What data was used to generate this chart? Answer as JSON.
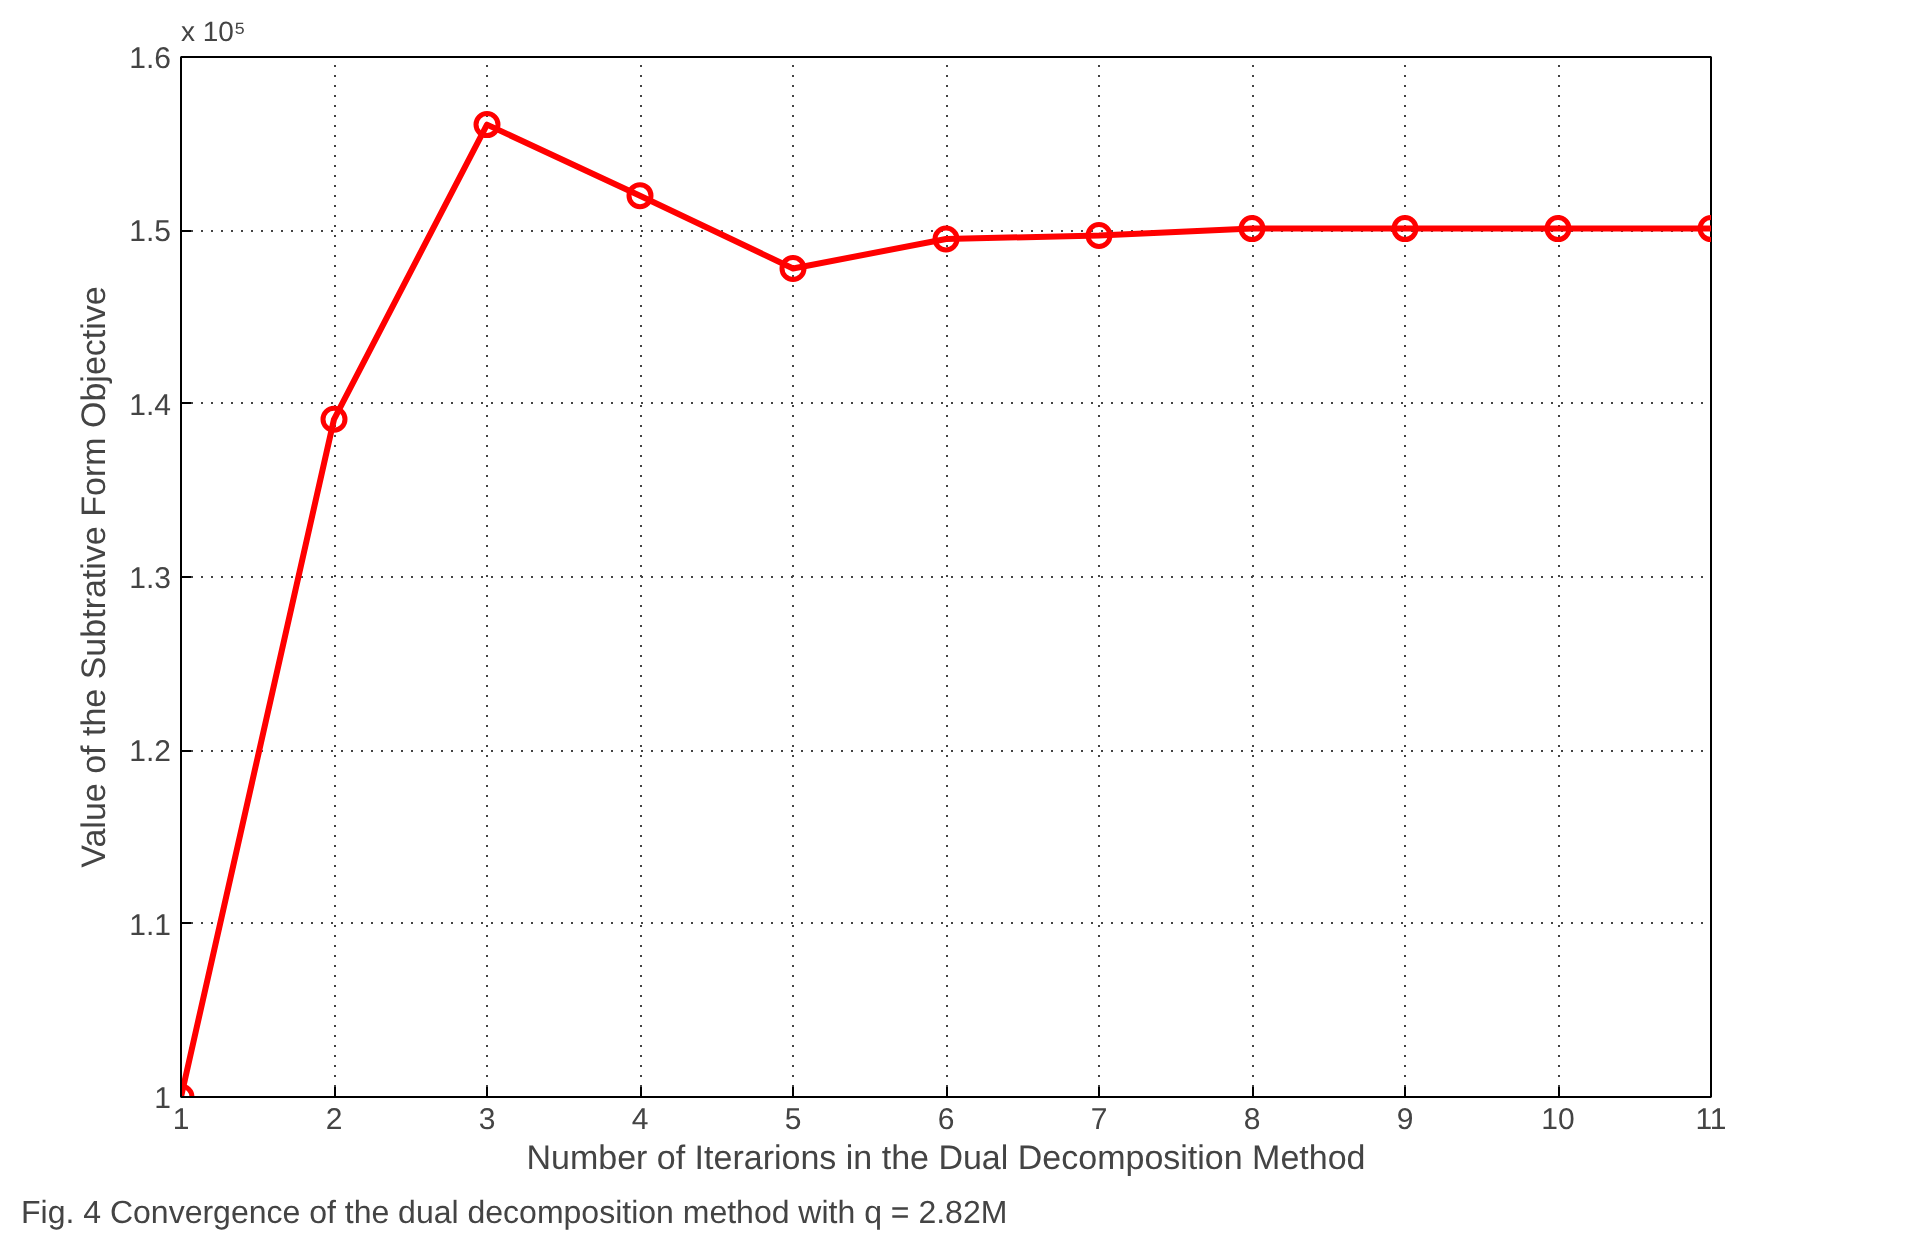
{
  "chart_data": {
    "type": "line",
    "xlabel": "Number of Iterarions in the Dual Decomposition Method",
    "ylabel": "Value of the Subtrative Form Objective",
    "x": [
      1,
      2,
      3,
      4,
      5,
      6,
      7,
      8,
      9,
      10,
      11
    ],
    "series": [
      {
        "color": "#ff0000",
        "values": [
          1,
          1.391,
          1.561,
          1.52,
          1.478,
          1.495,
          1.497,
          1.501,
          1.501,
          1.501,
          1.501
        ]
      }
    ],
    "xlim": [
      1,
      11
    ],
    "xticks": [
      1,
      2,
      3,
      4,
      5,
      6,
      7,
      8,
      9,
      10,
      11
    ],
    "ylim": [
      1,
      1.6
    ],
    "yticks": [
      1,
      1.1,
      1.2,
      1.3,
      1.4,
      1.5,
      1.6
    ],
    "grid": true,
    "marker": "circle",
    "line_style": "solid",
    "annotations": [
      "x 10⁵",
      "Fig. 4  Convergence of the dual decomposition method with q = 2.82M"
    ]
  }
}
